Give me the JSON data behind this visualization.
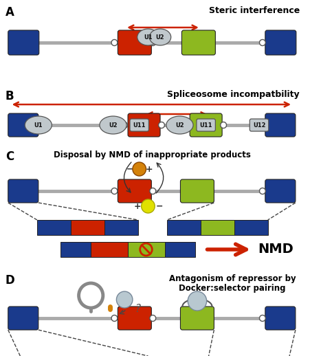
{
  "bg_color": "#ffffff",
  "blue_exon": "#1a3a8c",
  "red_exon": "#cc2200",
  "green_exon": "#8db820",
  "gray_line": "#aaaaaa",
  "arrow_red": "#cc2200",
  "orange_ball": "#d4820a",
  "yellow_ball": "#e0e000",
  "gray_ball": "#aaaaaa",
  "orange_stem": "#d4820a",
  "title_A": "Steric interference",
  "title_B": "Spliceosome incompatbility",
  "title_C": "Disposal by NMD of inappropriate products",
  "title_D_line1": "Antagonism of repressor by",
  "title_D_line2": "Docker:selector pairing"
}
